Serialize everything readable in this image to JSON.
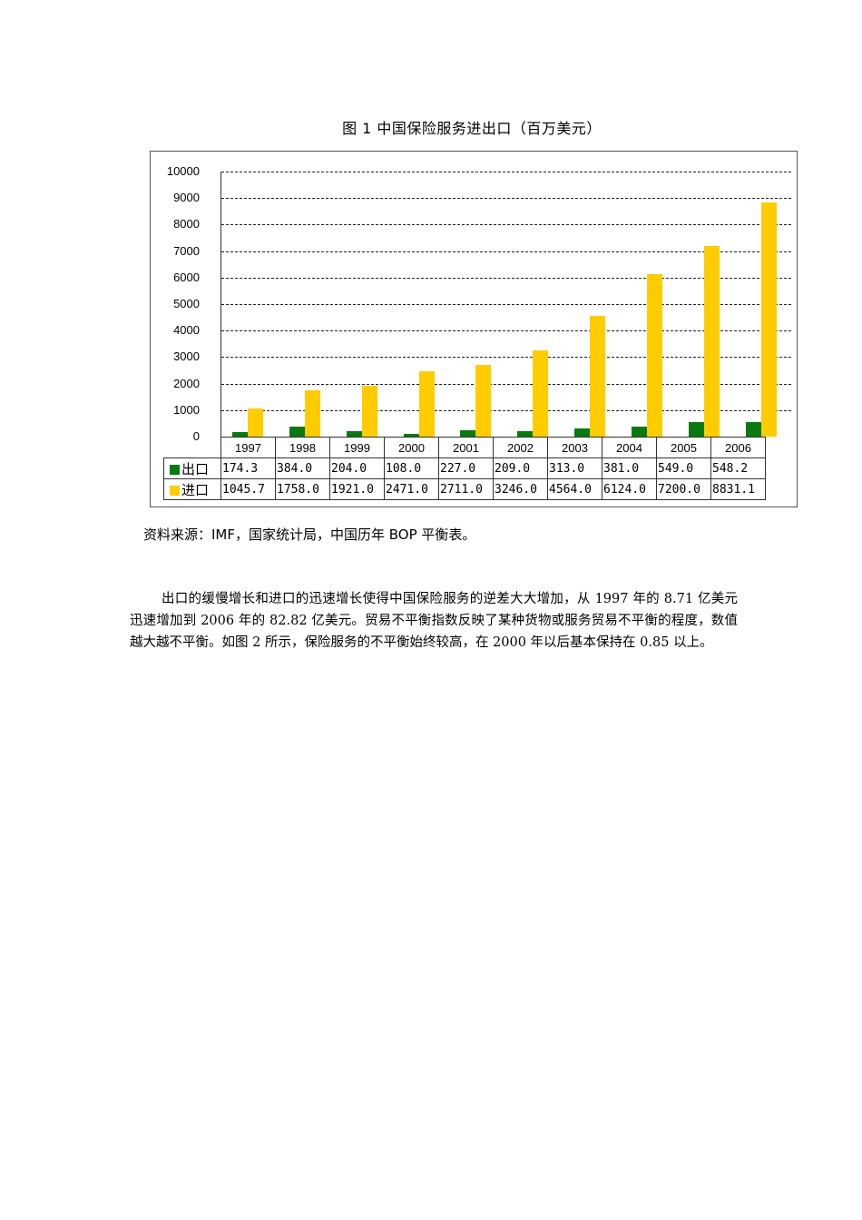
{
  "figure": {
    "title": "图 1  中国保险服务进出口（百万美元）",
    "source": "资料来源：IMF，国家统计局，中国历年 BOP 平衡表。"
  },
  "colors": {
    "export": "#087a0f",
    "import": "#ffcc00",
    "grid": "#222222",
    "frame": "#555555"
  },
  "chart_data": {
    "type": "bar",
    "title": "图 1  中国保险服务进出口（百万美元）",
    "xlabel": "",
    "ylabel": "",
    "ylim": [
      0,
      10000
    ],
    "yticks": [
      0,
      1000,
      2000,
      3000,
      4000,
      5000,
      6000,
      7000,
      8000,
      9000,
      10000
    ],
    "grid": true,
    "grid_style": "dashed",
    "legend_position": "data-table-left",
    "data_table": true,
    "categories": [
      "1997",
      "1998",
      "1999",
      "2000",
      "2001",
      "2002",
      "2003",
      "2004",
      "2005",
      "2006"
    ],
    "series": [
      {
        "name": "出口",
        "color": "#087a0f",
        "values": [
          174.3,
          384.0,
          204.0,
          108.0,
          227.0,
          209.0,
          313.0,
          381.0,
          549.0,
          548.2
        ],
        "labels": [
          "174.3",
          "384.0",
          "204.0",
          "108.0",
          "227.0",
          "209.0",
          "313.0",
          "381.0",
          "549.0",
          "548.2"
        ]
      },
      {
        "name": "进口",
        "color": "#ffcc00",
        "values": [
          1045.7,
          1758.0,
          1921.0,
          2471.0,
          2711.0,
          3246.0,
          4564.0,
          6124.0,
          7200.0,
          8831.1
        ],
        "labels": [
          "1045.7",
          "1758.0",
          "1921.0",
          "2471.0",
          "2711.0",
          "3246.0",
          "4564.0",
          "6124.0",
          "7200.0",
          "8831.1"
        ]
      }
    ]
  },
  "body_text": {
    "paragraph": "出口的缓慢增长和进口的迅速增长使得中国保险服务的逆差大大增加，从 1997 年的 8.71 亿美元迅速增加到 2006 年的 82.82 亿美元。贸易不平衡指数反映了某种货物或服务贸易不平衡的程度，数值越大越不平衡。如图 2 所示，保险服务的不平衡始终较高，在 2000 年以后基本保持在 0.85 以上。"
  }
}
